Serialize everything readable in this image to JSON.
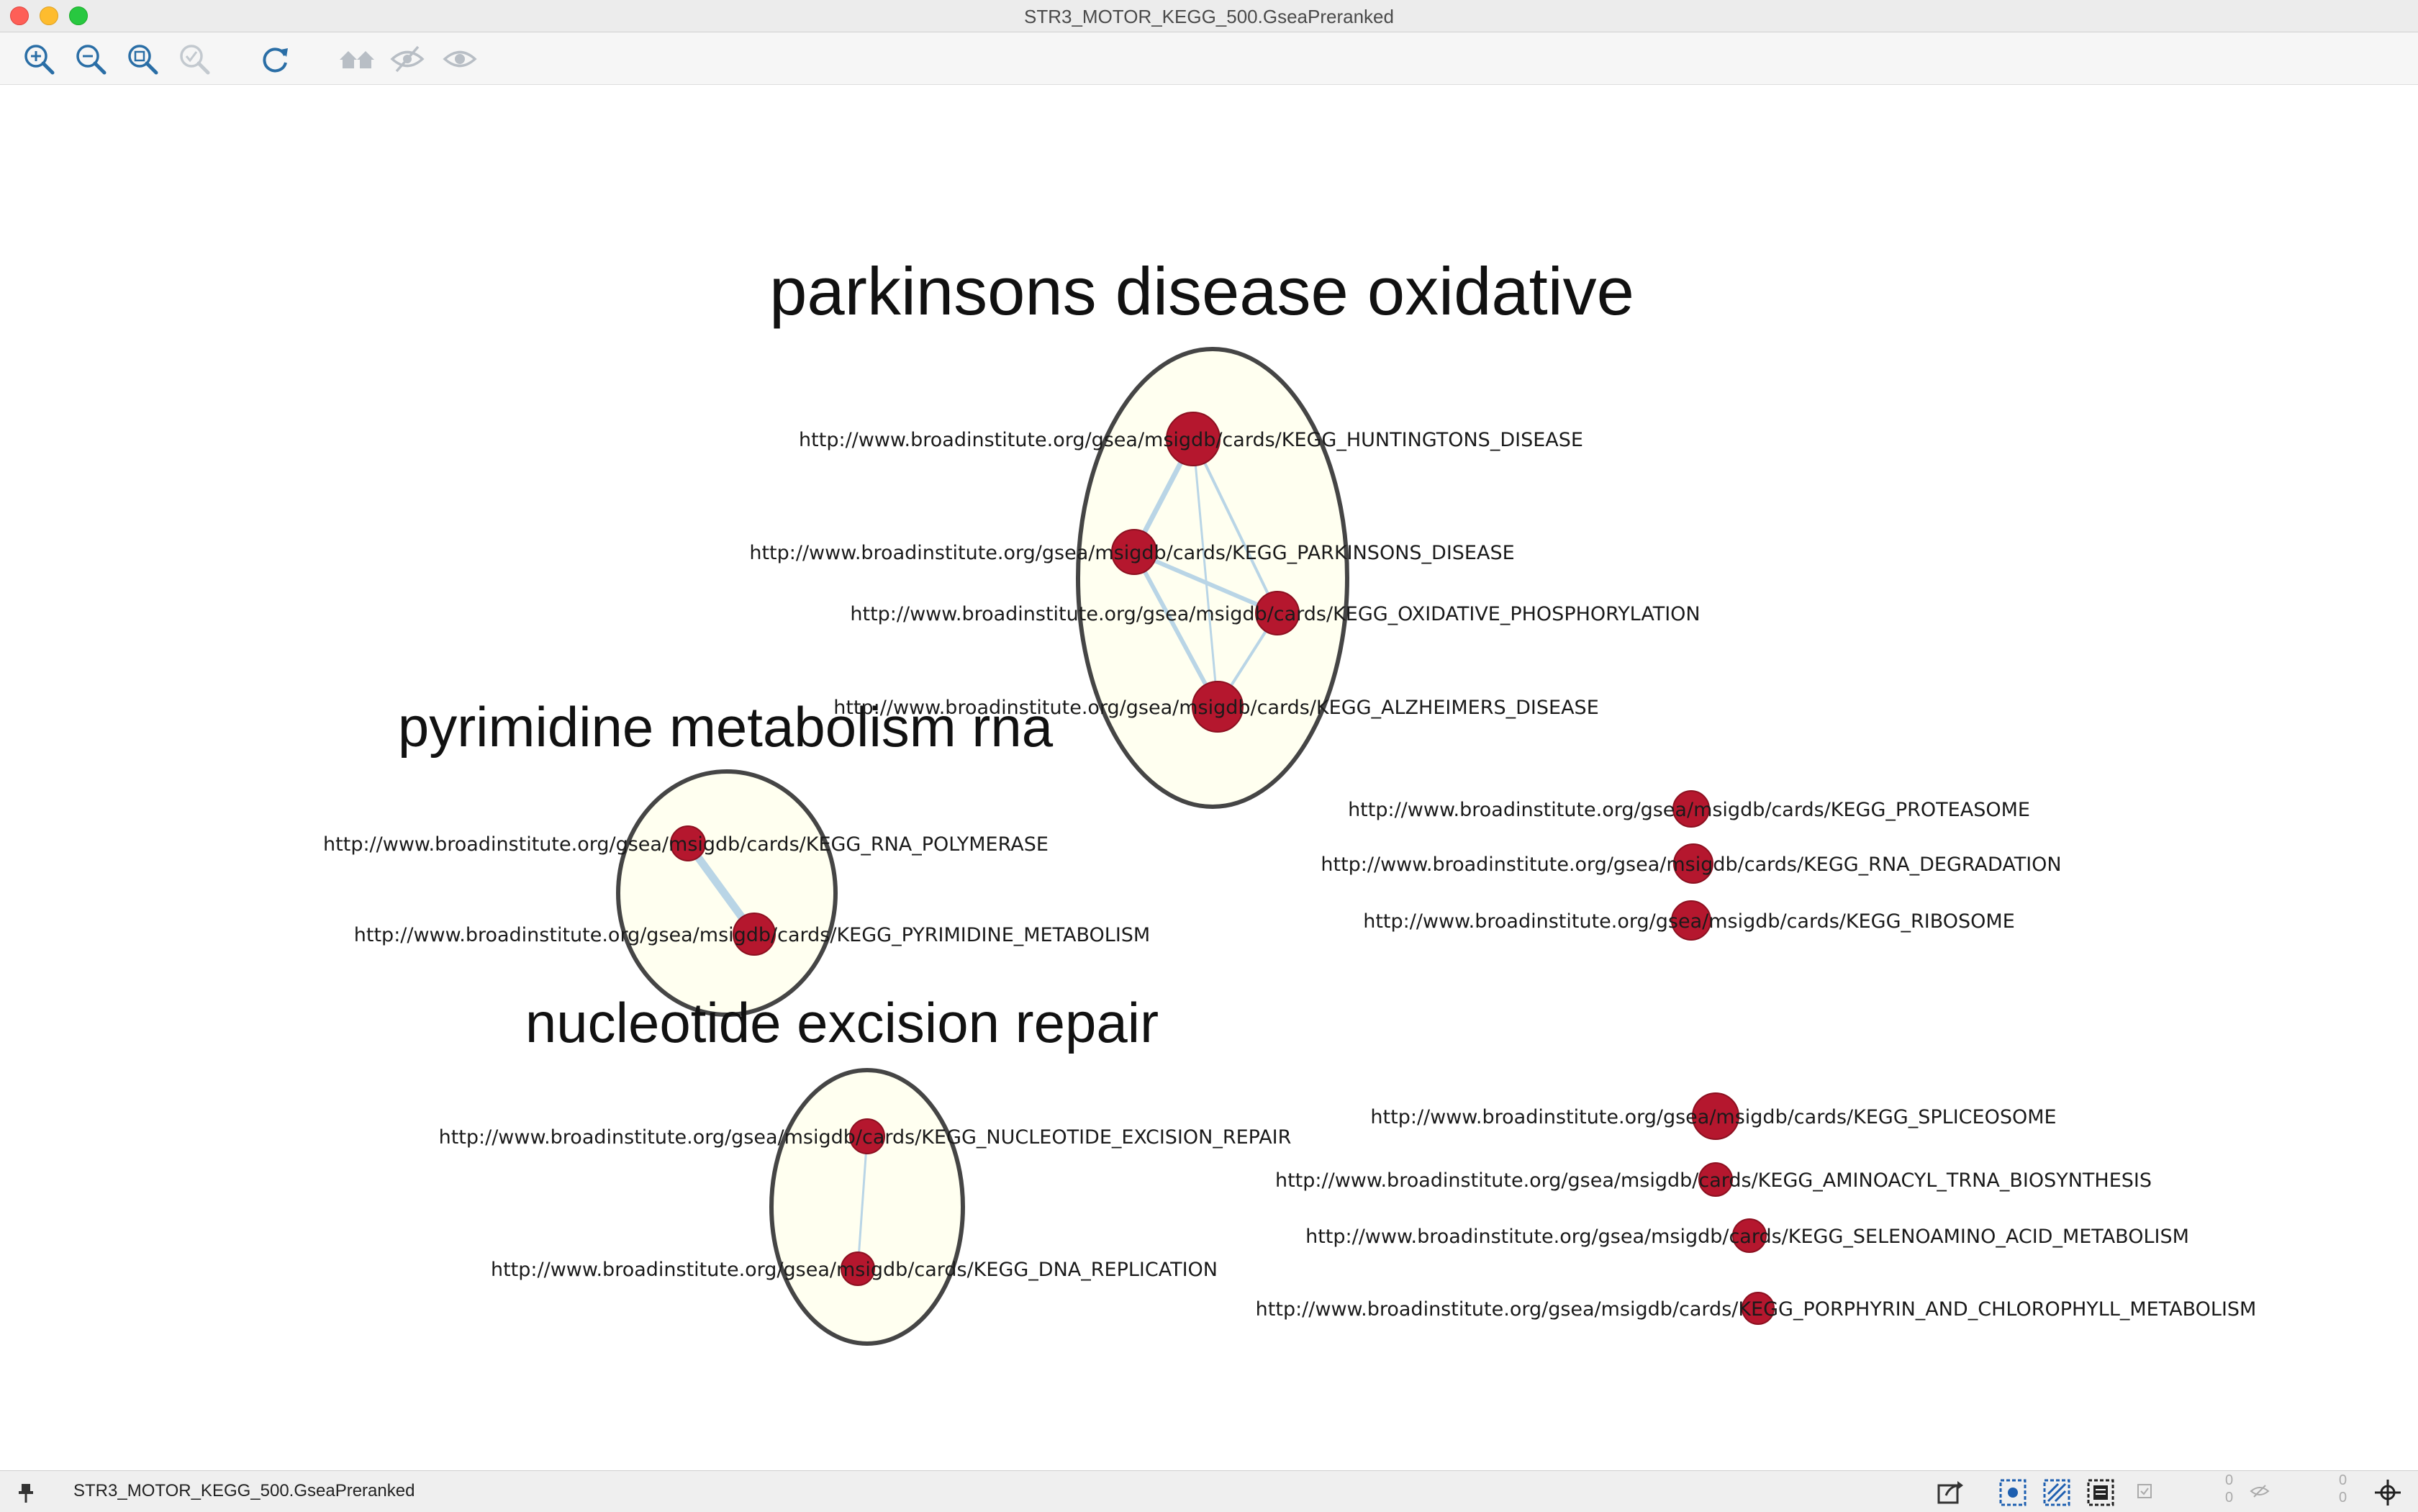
{
  "window": {
    "title": "STR3_MOTOR_KEGG_500.GseaPreranked"
  },
  "toolbar": {
    "buttons": [
      {
        "name": "zoom-in-icon",
        "label": "Zoom In"
      },
      {
        "name": "zoom-out-icon",
        "label": "Zoom Out"
      },
      {
        "name": "zoom-fit-icon",
        "label": "Zoom to Fit"
      },
      {
        "name": "zoom-selected-icon",
        "label": "Zoom Selected"
      },
      {
        "name": "refresh-icon",
        "label": "Refresh"
      },
      {
        "name": "home-icon",
        "label": "Show First Neighbors"
      },
      {
        "name": "hide-icon",
        "label": "Hide Selected"
      },
      {
        "name": "show-icon",
        "label": "Show All"
      }
    ]
  },
  "network": {
    "clusters": [
      {
        "id": "parkinsons",
        "label": "parkinsons disease oxidative"
      },
      {
        "id": "pyrimidine",
        "label": "pyrimidine metabolism rna"
      },
      {
        "id": "ner",
        "label": "nucleotide excision repair"
      }
    ],
    "nodes": [
      {
        "id": "n1",
        "cluster": "parkinsons",
        "label": "http://www.broadinstitute.org/gsea/msigdb/cards/KEGG_HUNTINGTONS_DISEASE"
      },
      {
        "id": "n2",
        "cluster": "parkinsons",
        "label": "http://www.broadinstitute.org/gsea/msigdb/cards/KEGG_PARKINSONS_DISEASE"
      },
      {
        "id": "n3",
        "cluster": "parkinsons",
        "label": "http://www.broadinstitute.org/gsea/msigdb/cards/KEGG_OXIDATIVE_PHOSPHORYLATION"
      },
      {
        "id": "n4",
        "cluster": "parkinsons",
        "label": "http://www.broadinstitute.org/gsea/msigdb/cards/KEGG_ALZHEIMERS_DISEASE"
      },
      {
        "id": "n5",
        "cluster": "pyrimidine",
        "label": "http://www.broadinstitute.org/gsea/msigdb/cards/KEGG_RNA_POLYMERASE"
      },
      {
        "id": "n6",
        "cluster": "pyrimidine",
        "label": "http://www.broadinstitute.org/gsea/msigdb/cards/KEGG_PYRIMIDINE_METABOLISM"
      },
      {
        "id": "n7",
        "cluster": "ner",
        "label": "http://www.broadinstitute.org/gsea/msigdb/cards/KEGG_NUCLEOTIDE_EXCISION_REPAIR"
      },
      {
        "id": "n8",
        "cluster": "ner",
        "label": "http://www.broadinstitute.org/gsea/msigdb/cards/KEGG_DNA_REPLICATION"
      },
      {
        "id": "n9",
        "cluster": "",
        "label": "http://www.broadinstitute.org/gsea/msigdb/cards/KEGG_PROTEASOME"
      },
      {
        "id": "n10",
        "cluster": "",
        "label": "http://www.broadinstitute.org/gsea/msigdb/cards/KEGG_RNA_DEGRADATION"
      },
      {
        "id": "n11",
        "cluster": "",
        "label": "http://www.broadinstitute.org/gsea/msigdb/cards/KEGG_RIBOSOME"
      },
      {
        "id": "n12",
        "cluster": "",
        "label": "http://www.broadinstitute.org/gsea/msigdb/cards/KEGG_SPLICEOSOME"
      },
      {
        "id": "n13",
        "cluster": "",
        "label": "http://www.broadinstitute.org/gsea/msigdb/cards/KEGG_AMINOACYL_TRNA_BIOSYNTHESIS"
      },
      {
        "id": "n14",
        "cluster": "",
        "label": "http://www.broadinstitute.org/gsea/msigdb/cards/KEGG_SELENOAMINO_ACID_METABOLISM"
      },
      {
        "id": "n15",
        "cluster": "",
        "label": "http://www.broadinstitute.org/gsea/msigdb/cards/KEGG_PORPHYRIN_AND_CHLOROPHYLL_METABOLISM"
      }
    ],
    "edges": [
      {
        "from": "n1",
        "to": "n2"
      },
      {
        "from": "n1",
        "to": "n3"
      },
      {
        "from": "n1",
        "to": "n4"
      },
      {
        "from": "n2",
        "to": "n3"
      },
      {
        "from": "n2",
        "to": "n4"
      },
      {
        "from": "n3",
        "to": "n4"
      },
      {
        "from": "n5",
        "to": "n6"
      },
      {
        "from": "n7",
        "to": "n8"
      }
    ]
  },
  "statusbar": {
    "network_name": "STR3_MOTOR_KEGG_500.GseaPreranked",
    "counts": [
      "0",
      "0",
      "0",
      "0",
      "0",
      "0"
    ]
  },
  "colors": {
    "node_fill": "#b5172e",
    "edge": "#b9d5e6",
    "cluster_fill": "#fffff0",
    "cluster_stroke": "#454545"
  }
}
